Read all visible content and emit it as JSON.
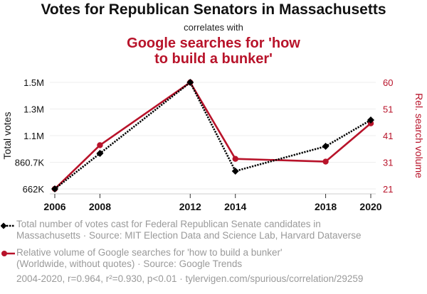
{
  "header": {
    "title": "Votes for Republican Senators in Massachusetts",
    "subtitle": "correlates with",
    "title2_line1": "Google searches for 'how",
    "title2_line2": "to build a bunker'"
  },
  "colors": {
    "series1": "#000000",
    "series2": "#b8132a",
    "grid": "#eeeeee",
    "legend_text": "#9a9a9a"
  },
  "legend": {
    "series1_line1": "Total number of votes cast for Federal Republican Senate candidates in",
    "series1_line2": "Massachusetts · Source: MIT Election Data and Science Lab, Harvard Dataverse",
    "series2_line1": "Relative volume of Google searches for 'how to build a bunker'",
    "series2_line2": "(Worldwide, without quotes) · Source: Google Trends",
    "footer": "2004-2020, r=0.964, r²=0.930, p<0.01 · tylervigen.com/spurious/correlation/29259"
  },
  "chart_data": {
    "type": "line",
    "title": "Votes for Republican Senators in Massachusetts correlates with Google searches for 'how to build a bunker'",
    "x": [
      "2006",
      "2008",
      "2012",
      "2014",
      "2018",
      "2020"
    ],
    "xlabel": "",
    "ylabel_left": "Total votes",
    "ylabel_right": "Rel. search volume",
    "ylim_left": [
      662000,
      1500000
    ],
    "ylim_right": [
      21,
      60
    ],
    "yticks_left": [
      "662K",
      "860.7K",
      "1.1M",
      "1.3M",
      "1.5M"
    ],
    "yticks_right": [
      "21",
      "31",
      "41",
      "51",
      "60"
    ],
    "grid": true,
    "legend_position": "bottom",
    "series": [
      {
        "name": "Total number of votes cast for Federal Republican Senate candidates in Massachusetts",
        "axis": "left",
        "style": "dotted",
        "marker": "diamond",
        "values": [
          662000,
          941000,
          1500000,
          802000,
          997000,
          1204000
        ]
      },
      {
        "name": "Relative volume of Google searches for 'how to build a bunker'",
        "axis": "right",
        "style": "solid",
        "marker": "circle",
        "values": [
          21,
          37,
          60,
          32,
          31,
          45
        ]
      }
    ]
  }
}
